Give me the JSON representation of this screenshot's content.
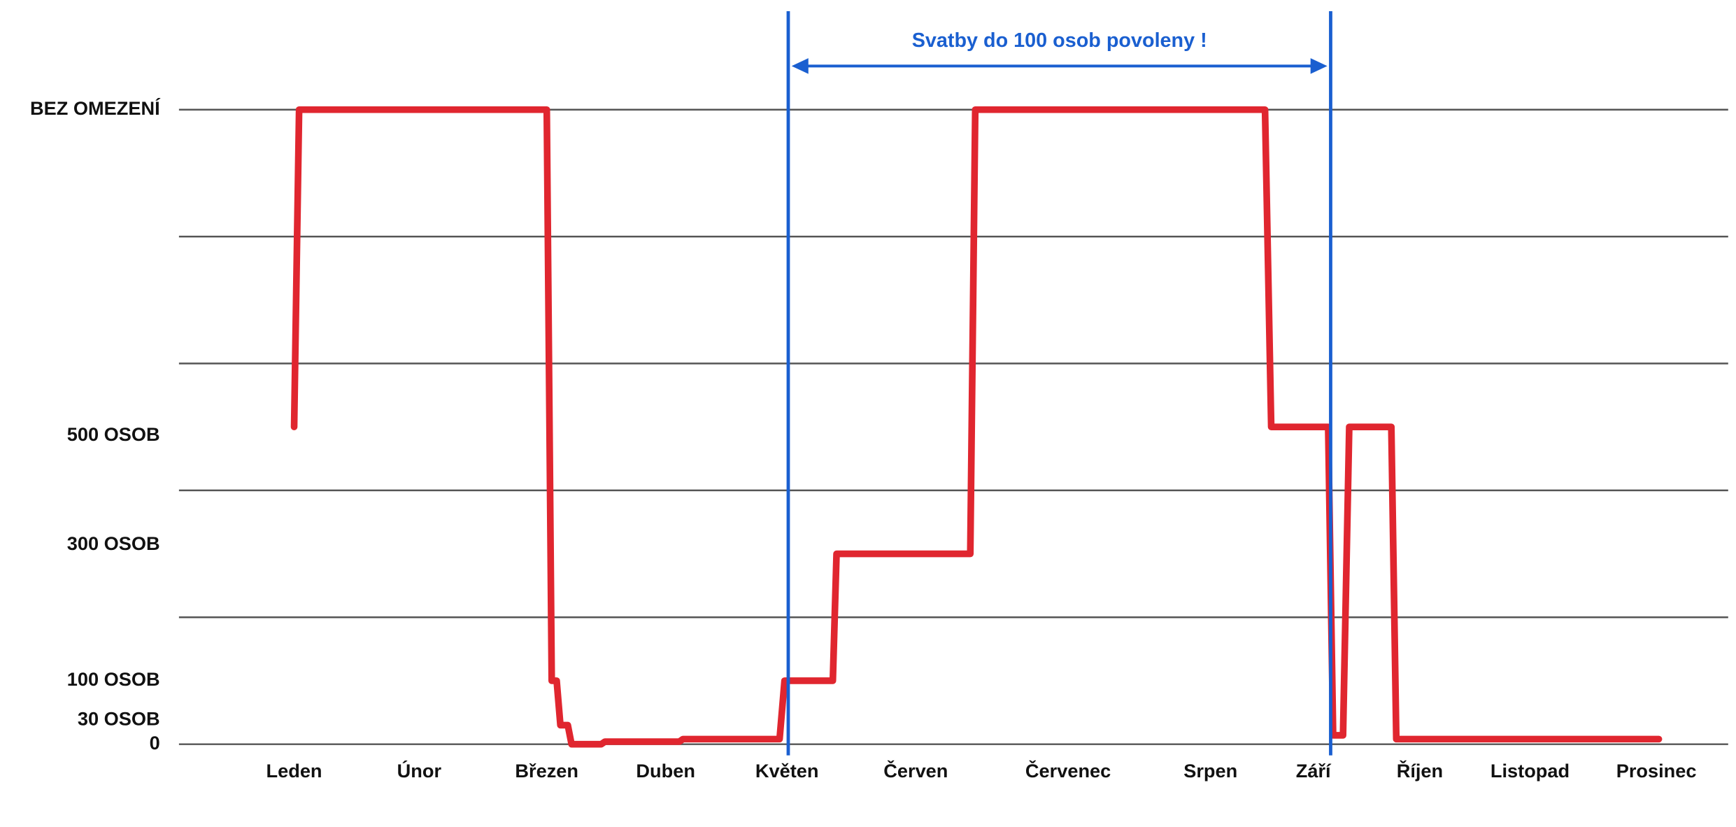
{
  "chart_data": {
    "type": "line",
    "xlim": [
      0.07,
      12.58
    ],
    "xticks": [
      {
        "value": 1,
        "label": "Leden"
      },
      {
        "value": 2.01,
        "label": "Únor"
      },
      {
        "value": 3.04,
        "label": "Březen"
      },
      {
        "value": 4.0,
        "label": "Duben"
      },
      {
        "value": 4.98,
        "label": "Květen"
      },
      {
        "value": 6.02,
        "label": "Červen"
      },
      {
        "value": 7.25,
        "label": "Červenec"
      },
      {
        "value": 8.4,
        "label": "Srpen"
      },
      {
        "value": 9.23,
        "label": "Září"
      },
      {
        "value": 10.09,
        "label": "Říjen"
      },
      {
        "value": 10.98,
        "label": "Listopad"
      },
      {
        "value": 12,
        "label": "Prosinec"
      }
    ],
    "ylim": [
      0,
      5
    ],
    "yticks": [
      0,
      {
        "value": 0.19,
        "label": "30 OSOB"
      },
      {
        "value": 0.5,
        "label": "100 OSOB"
      },
      {
        "value": 1.57,
        "label": "300 OSOB"
      },
      {
        "value": 2.43,
        "label": "500 OSOB"
      },
      {
        "value": 5,
        "label": "BEZ OMEZENÍ"
      }
    ],
    "grid_lines": [
      0,
      1,
      2,
      3,
      4,
      5
    ],
    "grid": true,
    "series": [
      {
        "color": "#e0262f",
        "x": [
          1.0,
          1.04,
          3.04,
          3.08,
          3.12,
          3.15,
          3.21,
          3.24,
          3.48,
          3.51,
          4.11,
          4.14,
          4.92,
          4.96,
          5.35,
          5.38,
          6.46,
          6.5,
          8.84,
          8.89,
          9.35,
          9.39,
          9.47,
          9.52,
          9.86,
          9.9,
          12.02
        ],
        "values": [
          2.5,
          5,
          5,
          0.5,
          0.5,
          0.15,
          0.15,
          0,
          0,
          0.02,
          0.02,
          0.04,
          0.04,
          0.5,
          0.5,
          1.5,
          1.5,
          5,
          5,
          2.5,
          2.5,
          0.07,
          0.07,
          2.5,
          2.5,
          0.04,
          0.04
        ]
      }
    ],
    "annotation": {
      "text": "Svatby do 100 osob povoleny !",
      "x": [
        4.99,
        9.37
      ],
      "color": "#1a5fd0"
    }
  }
}
